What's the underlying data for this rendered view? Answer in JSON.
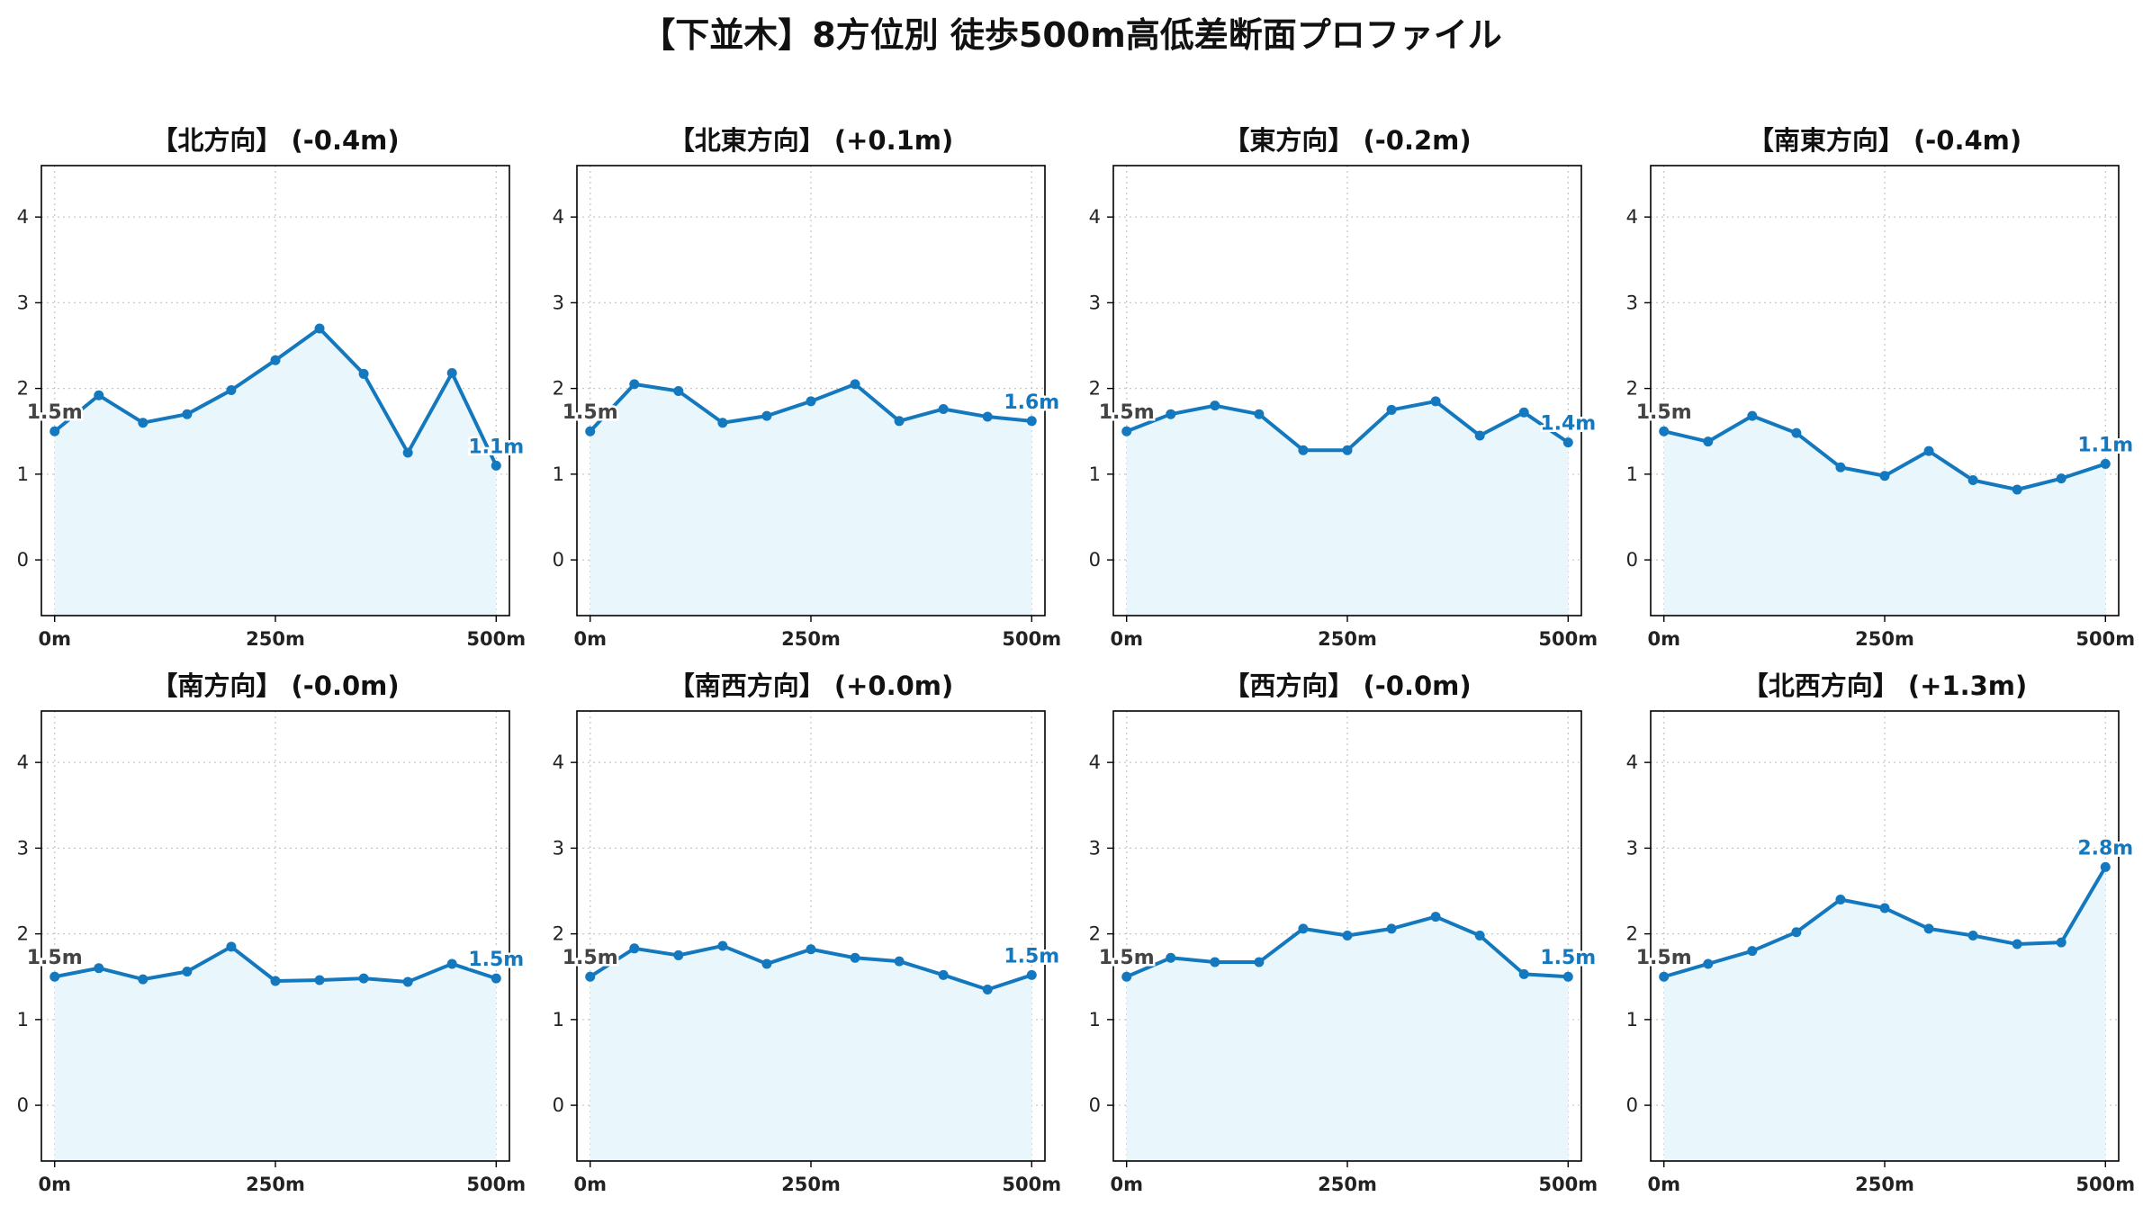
{
  "main_title": "【下並木】8方位別 徒歩500m高低差断面プロファイル",
  "colors": {
    "line": "#1478be",
    "fill": "#e9f6fb",
    "grid": "#c8c8c8",
    "start_label": "#444444",
    "end_label": "#1478be"
  },
  "chart_data": [
    {
      "type": "area",
      "title": "【北方向】 (-0.4m)",
      "x": [
        0,
        50,
        100,
        150,
        200,
        250,
        300,
        350,
        400,
        450,
        500
      ],
      "y": [
        1.5,
        1.92,
        1.6,
        1.7,
        1.98,
        2.33,
        2.7,
        2.17,
        1.25,
        2.18,
        1.1
      ],
      "xticks": [
        "0m",
        "250m",
        "500m"
      ],
      "yticks": [
        0,
        1,
        2,
        3,
        4
      ],
      "ylim": [
        -0.65,
        4.6
      ],
      "start_label": "1.5m",
      "end_label": "1.1m"
    },
    {
      "type": "area",
      "title": "【北東方向】 (+0.1m)",
      "x": [
        0,
        50,
        100,
        150,
        200,
        250,
        300,
        350,
        400,
        450,
        500
      ],
      "y": [
        1.5,
        2.05,
        1.97,
        1.6,
        1.68,
        1.85,
        2.05,
        1.62,
        1.76,
        1.67,
        1.62
      ],
      "xticks": [
        "0m",
        "250m",
        "500m"
      ],
      "yticks": [
        0,
        1,
        2,
        3,
        4
      ],
      "ylim": [
        -0.65,
        4.6
      ],
      "start_label": "1.5m",
      "end_label": "1.6m"
    },
    {
      "type": "area",
      "title": "【東方向】 (-0.2m)",
      "x": [
        0,
        50,
        100,
        150,
        200,
        250,
        300,
        350,
        400,
        450,
        500
      ],
      "y": [
        1.5,
        1.7,
        1.8,
        1.7,
        1.28,
        1.28,
        1.75,
        1.85,
        1.45,
        1.72,
        1.37
      ],
      "xticks": [
        "0m",
        "250m",
        "500m"
      ],
      "yticks": [
        0,
        1,
        2,
        3,
        4
      ],
      "ylim": [
        -0.65,
        4.6
      ],
      "start_label": "1.5m",
      "end_label": "1.4m"
    },
    {
      "type": "area",
      "title": "【南東方向】 (-0.4m)",
      "x": [
        0,
        50,
        100,
        150,
        200,
        250,
        300,
        350,
        400,
        450,
        500
      ],
      "y": [
        1.5,
        1.38,
        1.68,
        1.48,
        1.08,
        0.98,
        1.27,
        0.93,
        0.82,
        0.95,
        1.12
      ],
      "xticks": [
        "0m",
        "250m",
        "500m"
      ],
      "yticks": [
        0,
        1,
        2,
        3,
        4
      ],
      "ylim": [
        -0.65,
        4.6
      ],
      "start_label": "1.5m",
      "end_label": "1.1m"
    },
    {
      "type": "area",
      "title": "【南方向】 (-0.0m)",
      "x": [
        0,
        50,
        100,
        150,
        200,
        250,
        300,
        350,
        400,
        450,
        500
      ],
      "y": [
        1.5,
        1.6,
        1.47,
        1.56,
        1.85,
        1.45,
        1.46,
        1.48,
        1.44,
        1.65,
        1.48
      ],
      "xticks": [
        "0m",
        "250m",
        "500m"
      ],
      "yticks": [
        0,
        1,
        2,
        3,
        4
      ],
      "ylim": [
        -0.65,
        4.6
      ],
      "start_label": "1.5m",
      "end_label": "1.5m"
    },
    {
      "type": "area",
      "title": "【南西方向】 (+0.0m)",
      "x": [
        0,
        50,
        100,
        150,
        200,
        250,
        300,
        350,
        400,
        450,
        500
      ],
      "y": [
        1.5,
        1.83,
        1.75,
        1.86,
        1.65,
        1.82,
        1.72,
        1.68,
        1.52,
        1.35,
        1.52
      ],
      "xticks": [
        "0m",
        "250m",
        "500m"
      ],
      "yticks": [
        0,
        1,
        2,
        3,
        4
      ],
      "ylim": [
        -0.65,
        4.6
      ],
      "start_label": "1.5m",
      "end_label": "1.5m"
    },
    {
      "type": "area",
      "title": "【西方向】 (-0.0m)",
      "x": [
        0,
        50,
        100,
        150,
        200,
        250,
        300,
        350,
        400,
        450,
        500
      ],
      "y": [
        1.5,
        1.72,
        1.67,
        1.67,
        2.06,
        1.98,
        2.06,
        2.2,
        1.98,
        1.53,
        1.5
      ],
      "xticks": [
        "0m",
        "250m",
        "500m"
      ],
      "yticks": [
        0,
        1,
        2,
        3,
        4
      ],
      "ylim": [
        -0.65,
        4.6
      ],
      "start_label": "1.5m",
      "end_label": "1.5m"
    },
    {
      "type": "area",
      "title": "【北西方向】 (+1.3m)",
      "x": [
        0,
        50,
        100,
        150,
        200,
        250,
        300,
        350,
        400,
        450,
        500
      ],
      "y": [
        1.5,
        1.65,
        1.8,
        2.02,
        2.4,
        2.3,
        2.06,
        1.98,
        1.88,
        1.9,
        2.78
      ],
      "xticks": [
        "0m",
        "250m",
        "500m"
      ],
      "yticks": [
        0,
        1,
        2,
        3,
        4
      ],
      "ylim": [
        -0.65,
        4.6
      ],
      "start_label": "1.5m",
      "end_label": "2.8m"
    }
  ]
}
